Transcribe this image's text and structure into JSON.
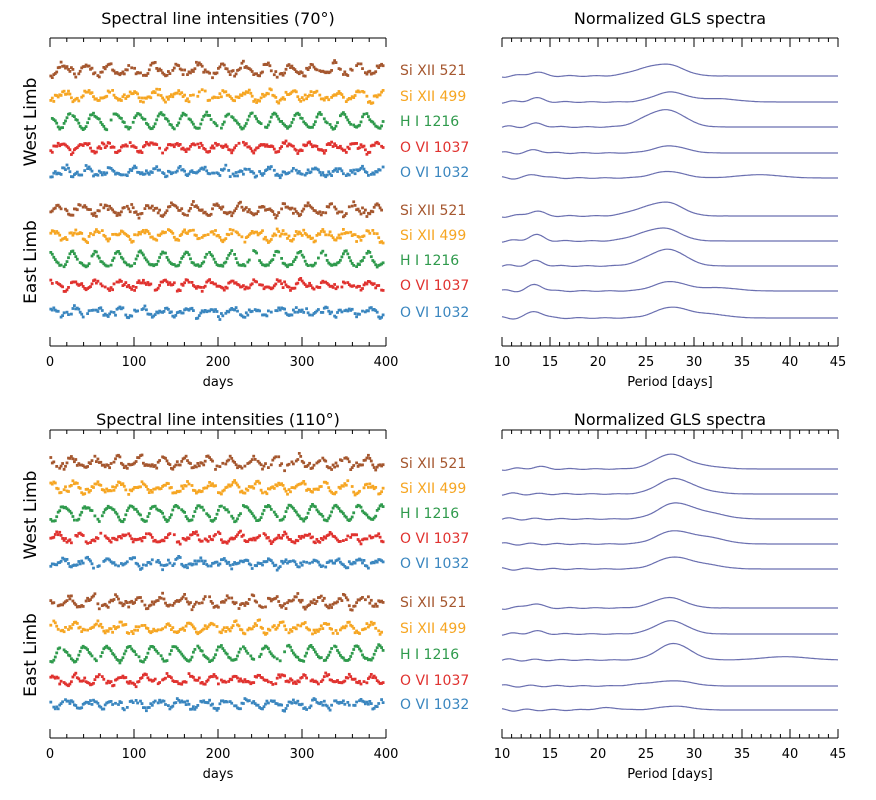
{
  "figure": {
    "panels": [
      {
        "title": "Spectral line intensities (70°)",
        "gls_title": "Normalized GLS spectra",
        "groups": [
          {
            "name": "West Limb",
            "lines": [
              {
                "label": "Si XII 521",
                "color": "#a5572f",
                "peaks": [
                  [
                    27.3,
                    1.0
                  ],
                  [
                    24.5,
                    0.45
                  ],
                  [
                    13.5,
                    0.35
                  ]
                ]
              },
              {
                "label": "Si XII 499",
                "color": "#f6a623",
                "peaks": [
                  [
                    27.5,
                    0.9
                  ],
                  [
                    32.5,
                    0.3
                  ],
                  [
                    13.5,
                    0.35
                  ]
                ]
              },
              {
                "label": "H I 1216",
                "color": "#2f9a4c",
                "peaks": [
                  [
                    27.6,
                    1.3
                  ],
                  [
                    25.3,
                    0.65
                  ],
                  [
                    13.6,
                    0.3
                  ]
                ]
              },
              {
                "label": "O VI 1037",
                "color": "#e0322f",
                "peaks": [
                  [
                    27.5,
                    0.65
                  ],
                  [
                    13.5,
                    0.25
                  ]
                ]
              },
              {
                "label": "O VI 1032",
                "color": "#3a86bf",
                "peaks": [
                  [
                    27.3,
                    0.6
                  ],
                  [
                    36.8,
                    0.3
                  ],
                  [
                    13.5,
                    0.3
                  ]
                ]
              }
            ]
          },
          {
            "name": "East Limb",
            "lines": [
              {
                "label": "Si XII 521",
                "color": "#a5572f",
                "peaks": [
                  [
                    27.2,
                    1.2
                  ],
                  [
                    24.3,
                    0.45
                  ],
                  [
                    13.5,
                    0.45
                  ]
                ]
              },
              {
                "label": "Si XII 499",
                "color": "#f6a623",
                "peaks": [
                  [
                    27.0,
                    1.1
                  ],
                  [
                    24.3,
                    0.4
                  ],
                  [
                    13.5,
                    0.55
                  ]
                ]
              },
              {
                "label": "H I 1216",
                "color": "#2f9a4c",
                "peaks": [
                  [
                    27.6,
                    1.35
                  ],
                  [
                    25.3,
                    0.45
                  ],
                  [
                    13.5,
                    0.45
                  ]
                ]
              },
              {
                "label": "O VI 1037",
                "color": "#e0322f",
                "peaks": [
                  [
                    27.5,
                    0.85
                  ],
                  [
                    32.5,
                    0.3
                  ],
                  [
                    13.5,
                    0.55
                  ]
                ]
              },
              {
                "label": "O VI 1032",
                "color": "#3a86bf",
                "peaks": [
                  [
                    27.6,
                    0.95
                  ],
                  [
                    31.5,
                    0.35
                  ],
                  [
                    13.5,
                    0.6
                  ]
                ]
              }
            ]
          }
        ]
      },
      {
        "title": "Spectral line intensities (110°)",
        "gls_title": "Normalized GLS spectra",
        "groups": [
          {
            "name": "West Limb",
            "lines": [
              {
                "label": "Si XII 521",
                "color": "#a5572f",
                "peaks": [
                  [
                    27.5,
                    1.3
                  ],
                  [
                    31.0,
                    0.25
                  ],
                  [
                    13.8,
                    0.2
                  ]
                ]
              },
              {
                "label": "Si XII 499",
                "color": "#f6a623",
                "peaks": [
                  [
                    27.8,
                    1.3
                  ],
                  [
                    30.5,
                    0.3
                  ]
                ]
              },
              {
                "label": "H I 1216",
                "color": "#2f9a4c",
                "peaks": [
                  [
                    27.9,
                    1.35
                  ],
                  [
                    31.3,
                    0.55
                  ]
                ]
              },
              {
                "label": "O VI 1037",
                "color": "#e0322f",
                "peaks": [
                  [
                    27.7,
                    1.1
                  ],
                  [
                    31.3,
                    0.6
                  ]
                ]
              },
              {
                "label": "O VI 1032",
                "color": "#3a86bf",
                "peaks": [
                  [
                    27.7,
                    1.0
                  ],
                  [
                    31.0,
                    0.4
                  ]
                ]
              }
            ]
          },
          {
            "name": "East Limb",
            "lines": [
              {
                "label": "Si XII 521",
                "color": "#a5572f",
                "peaks": [
                  [
                    27.4,
                    0.95
                  ],
                  [
                    13.3,
                    0.4
                  ]
                ]
              },
              {
                "label": "Si XII 499",
                "color": "#f6a623",
                "peaks": [
                  [
                    27.6,
                    1.2
                  ],
                  [
                    13.5,
                    0.25
                  ]
                ]
              },
              {
                "label": "H I 1216",
                "color": "#2f9a4c",
                "peaks": [
                  [
                    27.9,
                    1.5
                  ],
                  [
                    39.5,
                    0.3
                  ]
                ]
              },
              {
                "label": "O VI 1037",
                "color": "#e0322f",
                "peaks": [
                  [
                    28.2,
                    0.45
                  ],
                  [
                    25.0,
                    0.2
                  ]
                ]
              },
              {
                "label": "O VI 1032",
                "color": "#3a86bf",
                "peaks": [
                  [
                    28.0,
                    0.35
                  ],
                  [
                    21.0,
                    0.2
                  ]
                ]
              }
            ]
          }
        ]
      }
    ]
  },
  "axes": {
    "days": {
      "label": "days",
      "range": [
        0,
        400
      ],
      "ticks": [
        "0",
        "100",
        "200",
        "300",
        "400"
      ]
    },
    "period": {
      "label": "Period [days]",
      "range": [
        10,
        45
      ],
      "ticks": [
        "10",
        "15",
        "20",
        "25",
        "30",
        "35",
        "40",
        "45"
      ]
    }
  },
  "curve_color": "#6a6fb0",
  "chart_data": [
    {
      "type": "scatter",
      "title": "Spectral line intensities (70°)",
      "xlabel": "days",
      "ylabel": "",
      "xlim": [
        0,
        400
      ],
      "series": [
        "Si XII 521",
        "Si XII 499",
        "H I 1216",
        "O VI 1037",
        "O VI 1032"
      ],
      "groups": [
        "West Limb",
        "East Limb"
      ]
    },
    {
      "type": "line",
      "title": "Normalized GLS spectra",
      "xlabel": "Period [days]",
      "ylabel": "",
      "xlim": [
        10,
        45
      ],
      "dominant_peak_period_days": 27.5
    },
    {
      "type": "scatter",
      "title": "Spectral line intensities (110°)",
      "xlabel": "days",
      "ylabel": "",
      "xlim": [
        0,
        400
      ],
      "series": [
        "Si XII 521",
        "Si XII 499",
        "H I 1216",
        "O VI 1037",
        "O VI 1032"
      ],
      "groups": [
        "West Limb",
        "East Limb"
      ]
    },
    {
      "type": "line",
      "title": "Normalized GLS spectra",
      "xlabel": "Period [days]",
      "ylabel": "",
      "xlim": [
        10,
        45
      ],
      "dominant_peak_period_days": 27.7
    }
  ]
}
